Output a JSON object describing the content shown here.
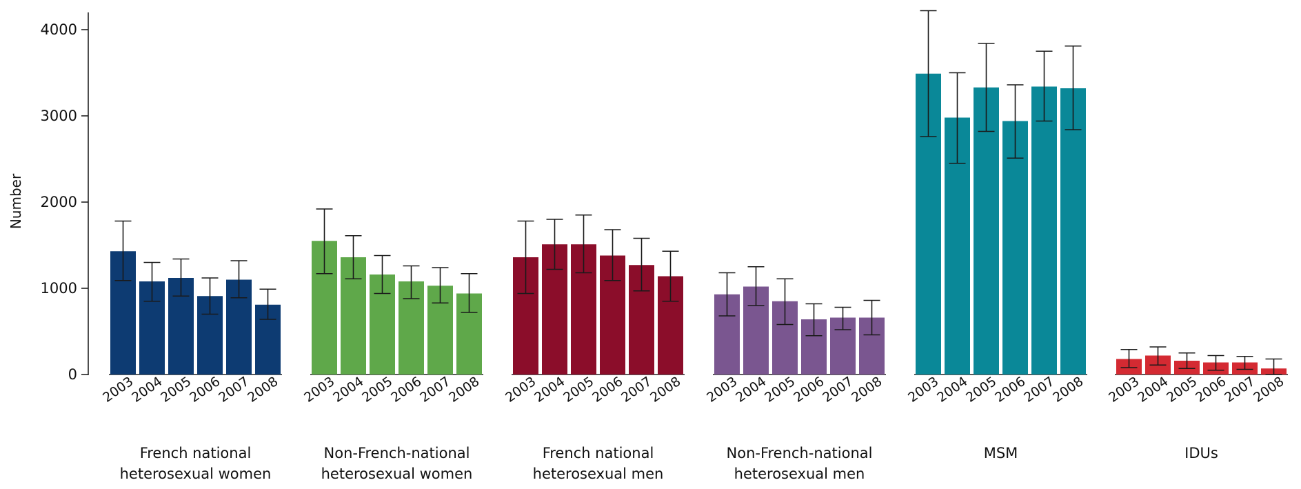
{
  "chart_data": {
    "type": "bar",
    "title": "",
    "xlabel": "",
    "ylabel": "Number",
    "ylim": [
      0,
      4200
    ],
    "yticks": [
      0,
      1000,
      2000,
      3000,
      4000
    ],
    "ytick_labels": [
      "0",
      "1000",
      "2000",
      "3000",
      "4000"
    ],
    "categories": [
      "2003",
      "2004",
      "2005",
      "2006",
      "2007",
      "2008"
    ],
    "groups": [
      {
        "label_lines": [
          "French national",
          "heterosexual women"
        ],
        "color": "#0d3b72",
        "values": [
          1430,
          1080,
          1120,
          910,
          1100,
          810
        ],
        "error_low": [
          1090,
          850,
          910,
          700,
          890,
          640
        ],
        "error_high": [
          1780,
          1300,
          1340,
          1120,
          1320,
          990
        ]
      },
      {
        "label_lines": [
          "Non-French-national",
          "heterosexual women"
        ],
        "color": "#5fa84a",
        "values": [
          1550,
          1360,
          1160,
          1080,
          1030,
          940
        ],
        "error_low": [
          1170,
          1110,
          940,
          880,
          830,
          720
        ],
        "error_high": [
          1920,
          1610,
          1380,
          1260,
          1240,
          1170
        ]
      },
      {
        "label_lines": [
          "French national",
          "heterosexual men"
        ],
        "color": "#8b0d2a",
        "values": [
          1360,
          1510,
          1510,
          1380,
          1270,
          1140
        ],
        "error_low": [
          940,
          1220,
          1180,
          1090,
          970,
          850
        ],
        "error_high": [
          1780,
          1800,
          1850,
          1680,
          1580,
          1430
        ]
      },
      {
        "label_lines": [
          "Non-French-national",
          "heterosexual men"
        ],
        "color": "#7a5690",
        "values": [
          930,
          1020,
          850,
          640,
          660,
          660
        ],
        "error_low": [
          680,
          800,
          580,
          450,
          520,
          460
        ],
        "error_high": [
          1180,
          1250,
          1110,
          820,
          780,
          860
        ]
      },
      {
        "label_lines": [
          "MSM"
        ],
        "color": "#0a8898",
        "values": [
          3490,
          2980,
          3330,
          2940,
          3340,
          3320
        ],
        "error_low": [
          2760,
          2450,
          2820,
          2510,
          2940,
          2840
        ],
        "error_high": [
          4220,
          3500,
          3840,
          3360,
          3750,
          3810
        ]
      },
      {
        "label_lines": [
          "IDUs"
        ],
        "color": "#d42a32",
        "values": [
          180,
          220,
          160,
          140,
          140,
          70
        ],
        "error_low": [
          80,
          110,
          70,
          50,
          60,
          0
        ],
        "error_high": [
          290,
          320,
          250,
          220,
          210,
          180
        ]
      }
    ]
  }
}
